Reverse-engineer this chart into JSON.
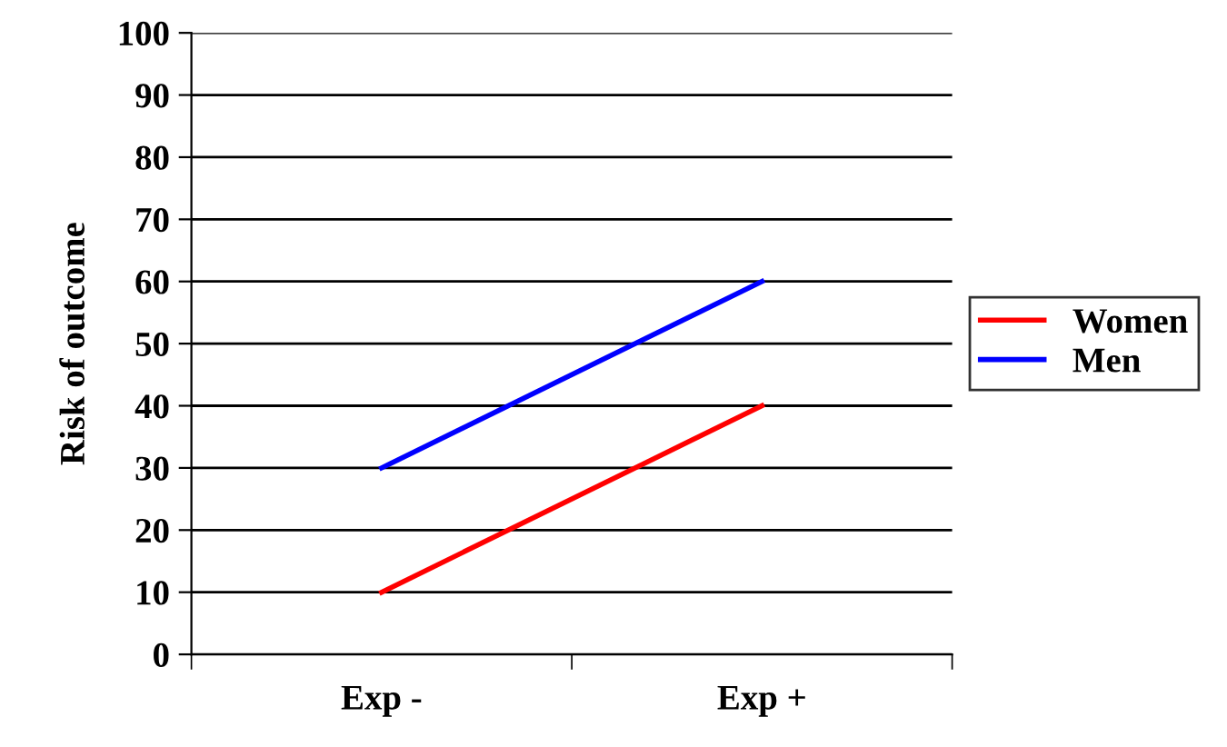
{
  "chart_data": {
    "type": "line",
    "ylabel": "Risk of outcome",
    "categories": [
      "Exp -",
      "Exp +"
    ],
    "series": [
      {
        "name": "Women",
        "color": "#ff0000",
        "values": [
          10,
          40
        ]
      },
      {
        "name": "Men",
        "color": "#0000ff",
        "values": [
          30,
          60
        ]
      }
    ],
    "ylim": [
      0,
      100
    ],
    "yticks": [
      0,
      10,
      20,
      30,
      40,
      50,
      60,
      70,
      80,
      90,
      100
    ],
    "grid": "y",
    "legend": "right",
    "marker": "none",
    "line_style": "solid"
  }
}
